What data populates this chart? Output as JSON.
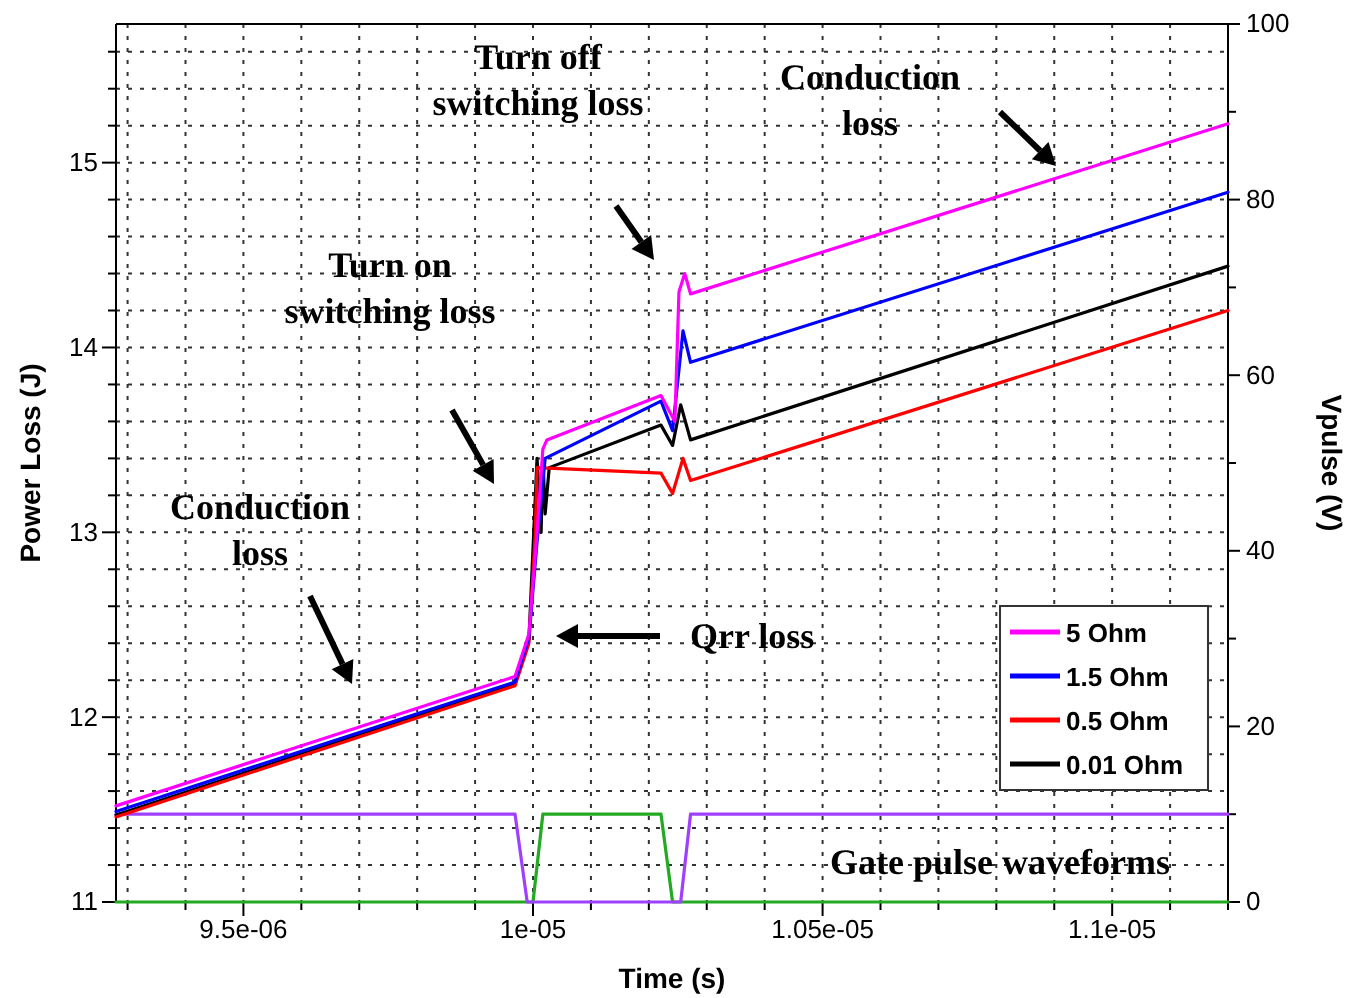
{
  "chart_data": {
    "type": "line",
    "xlabel": "Time (s)",
    "ylabel": "Power Loss (J)",
    "y2label": "Vpulse (V)",
    "xlim": [
      9.28e-06,
      1.12e-05
    ],
    "xticks": [
      {
        "value": 9.3e-06,
        "label": null
      },
      {
        "value": 9.4e-06,
        "label": null
      },
      {
        "value": 9.5e-06,
        "label": "9.5e-06"
      },
      {
        "value": 9.6e-06,
        "label": null
      },
      {
        "value": 9.7e-06,
        "label": null
      },
      {
        "value": 9.8e-06,
        "label": null
      },
      {
        "value": 9.9e-06,
        "label": null
      },
      {
        "value": 1e-05,
        "label": "1e-05"
      },
      {
        "value": 1.01e-05,
        "label": null
      },
      {
        "value": 1.02e-05,
        "label": null
      },
      {
        "value": 1.03e-05,
        "label": null
      },
      {
        "value": 1.04e-05,
        "label": null
      },
      {
        "value": 1.05e-05,
        "label": "1.05e-05"
      },
      {
        "value": 1.06e-05,
        "label": null
      },
      {
        "value": 1.07e-05,
        "label": null
      },
      {
        "value": 1.08e-05,
        "label": null
      },
      {
        "value": 1.09e-05,
        "label": null
      },
      {
        "value": 1.1e-05,
        "label": "1.1e-05"
      },
      {
        "value": 1.11e-05,
        "label": null
      },
      {
        "value": 1.12e-05,
        "label": null
      }
    ],
    "ylim": [
      11,
      15.75
    ],
    "yticks": [
      11,
      {
        "value": 11.2,
        "label": null
      },
      {
        "value": 11.4,
        "label": null
      },
      {
        "value": 11.6,
        "label": null
      },
      {
        "value": 11.8,
        "label": null
      },
      12,
      {
        "value": 12.2,
        "label": null
      },
      {
        "value": 12.4,
        "label": null
      },
      {
        "value": 12.6,
        "label": null
      },
      {
        "value": 12.8,
        "label": null
      },
      13,
      {
        "value": 13.2,
        "label": null
      },
      {
        "value": 13.4,
        "label": null
      },
      {
        "value": 13.6,
        "label": null
      },
      {
        "value": 13.8,
        "label": null
      },
      14,
      {
        "value": 14.2,
        "label": null
      },
      {
        "value": 14.4,
        "label": null
      },
      {
        "value": 14.6,
        "label": null
      },
      {
        "value": 14.8,
        "label": null
      },
      15,
      {
        "value": 15.2,
        "label": null
      },
      {
        "value": 15.4,
        "label": null
      },
      {
        "value": 15.6,
        "label": null
      }
    ],
    "y2lim": [
      0,
      100
    ],
    "y2ticks": [
      0,
      {
        "value": 10,
        "label": null
      },
      20,
      {
        "value": 30,
        "label": null
      },
      40,
      {
        "value": 50,
        "label": null
      },
      60,
      {
        "value": 70,
        "label": null
      },
      80,
      {
        "value": 90,
        "label": null
      },
      100
    ],
    "grid": true,
    "legend": "bottom right",
    "line_style": "solid",
    "series": [
      {
        "name": "5 Ohm",
        "color": "#ff00ff",
        "x": [
          9.28e-06,
          9.969e-06,
          9.993e-06,
          1.0007e-05,
          1.0017e-05,
          1.0024e-05,
          1.0221e-05,
          1.0245e-05,
          1.0252e-05,
          1.0262e-05,
          1.0272e-05,
          1.12e-05
        ],
        "values": [
          11.52,
          12.22,
          12.45,
          13.0,
          13.45,
          13.5,
          13.74,
          13.6,
          14.3,
          14.4,
          14.29,
          15.21
        ]
      },
      {
        "name": "1.5 Ohm",
        "color": "#0000ff",
        "x": [
          9.28e-06,
          9.969e-06,
          9.993e-06,
          1.0007e-05,
          1.0021e-05,
          1.0221e-05,
          1.0241e-05,
          1.0259e-05,
          1.0272e-05,
          1.12e-05
        ],
        "values": [
          11.49,
          12.19,
          12.43,
          12.95,
          13.4,
          13.71,
          13.55,
          14.09,
          13.92,
          14.84
        ]
      },
      {
        "name": "0.5 Ohm",
        "color": "#ff0000",
        "x": [
          9.28e-06,
          9.969e-06,
          9.993e-06,
          1.0004e-05,
          1.0007e-05,
          1.0221e-05,
          1.0241e-05,
          1.0259e-05,
          1.0272e-05,
          1.12e-05
        ],
        "values": [
          11.46,
          12.17,
          12.4,
          13.0,
          13.35,
          13.32,
          13.21,
          13.4,
          13.28,
          14.2
        ]
      },
      {
        "name": "0.01 Ohm",
        "color": "#000000",
        "x": [
          9.28e-06,
          9.969e-06,
          9.993e-06,
          1.0007e-05,
          1.0014e-05,
          1.0017e-05,
          1.0021e-05,
          1.0028e-05,
          1.0221e-05,
          1.0241e-05,
          1.0255e-05,
          1.0272e-05,
          1.12e-05
        ],
        "values": [
          11.47,
          12.18,
          12.42,
          13.4,
          13.0,
          13.4,
          13.1,
          13.35,
          13.58,
          13.47,
          13.69,
          13.5,
          14.44
        ]
      },
      {
        "color": "#a040ff",
        "axis": "y2",
        "x": [
          9.28e-06,
          9.969e-06,
          9.99e-06,
          1.0255e-05,
          1.0272e-05,
          1.12e-05
        ],
        "values": [
          10,
          10,
          0,
          0,
          10,
          10
        ]
      },
      {
        "color": "#22aa22",
        "axis": "y2",
        "x": [
          9.28e-06,
          1e-05,
          1.0017e-05,
          1.0221e-05,
          1.0241e-05,
          1.12e-05
        ],
        "values": [
          0,
          0,
          10,
          10,
          0,
          0
        ]
      }
    ],
    "annotations": [
      "Turn off\nswitching loss",
      "Turn on\nswitching loss",
      "Conduction\nloss",
      "Conduction\nloss",
      "Qrr  loss",
      "Gate pulse waveforms"
    ]
  }
}
